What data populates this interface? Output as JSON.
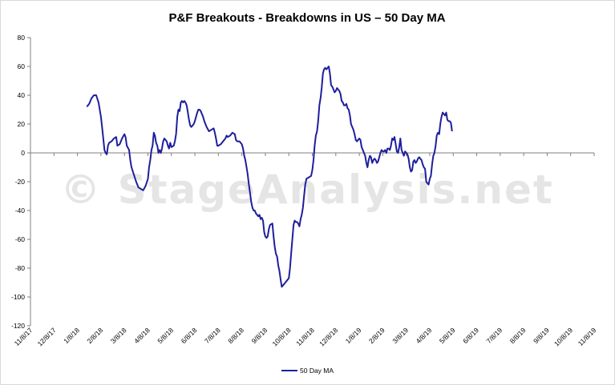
{
  "chart_data": {
    "type": "line",
    "title": "P&F Breakouts - Breakdowns in US – 50 Day MA",
    "xlabel": "",
    "ylabel": "",
    "ylim": [
      -120,
      80
    ],
    "yticks": [
      80,
      60,
      40,
      20,
      0,
      -20,
      -40,
      -60,
      -80,
      -100,
      -120
    ],
    "grid": false,
    "legend_position": "bottom",
    "watermark": "© StageAnalysis.net",
    "x_tick_labels": [
      "11/8/17",
      "12/8/17",
      "1/8/18",
      "2/8/18",
      "3/8/18",
      "4/8/18",
      "5/8/18",
      "6/8/18",
      "7/8/18",
      "8/8/18",
      "9/8/18",
      "10/8/18",
      "11/8/18",
      "12/8/18",
      "1/8/19",
      "2/8/19",
      "3/8/19",
      "4/8/19",
      "5/8/19",
      "6/8/19",
      "7/8/19",
      "8/8/19",
      "9/8/19",
      "10/8/19",
      "11/8/19"
    ],
    "series": [
      {
        "name": "50 Day MA",
        "color": "#1f1f9c",
        "points": [
          [
            2.4,
            32
          ],
          [
            2.5,
            34
          ],
          [
            2.6,
            38
          ],
          [
            2.7,
            40
          ],
          [
            2.8,
            40
          ],
          [
            2.9,
            35
          ],
          [
            3.0,
            25
          ],
          [
            3.05,
            18
          ],
          [
            3.1,
            10
          ],
          [
            3.15,
            2
          ],
          [
            3.2,
            0
          ],
          [
            3.25,
            -1
          ],
          [
            3.3,
            5
          ],
          [
            3.35,
            7
          ],
          [
            3.45,
            8
          ],
          [
            3.55,
            10
          ],
          [
            3.65,
            11
          ],
          [
            3.7,
            5
          ],
          [
            3.8,
            6
          ],
          [
            3.9,
            10
          ],
          [
            4.0,
            13
          ],
          [
            4.05,
            11
          ],
          [
            4.1,
            5
          ],
          [
            4.2,
            2
          ],
          [
            4.25,
            -5
          ],
          [
            4.3,
            -10
          ],
          [
            4.4,
            -15
          ],
          [
            4.5,
            -20
          ],
          [
            4.6,
            -24
          ],
          [
            4.7,
            -25
          ],
          [
            4.8,
            -26
          ],
          [
            4.9,
            -23
          ],
          [
            5.0,
            -18
          ],
          [
            5.05,
            -10
          ],
          [
            5.1,
            -5
          ],
          [
            5.15,
            2
          ],
          [
            5.2,
            5
          ],
          [
            5.25,
            14
          ],
          [
            5.3,
            12
          ],
          [
            5.35,
            7
          ],
          [
            5.4,
            5
          ],
          [
            5.45,
            0
          ],
          [
            5.5,
            2
          ],
          [
            5.55,
            0
          ],
          [
            5.6,
            3
          ],
          [
            5.65,
            8
          ],
          [
            5.7,
            10
          ],
          [
            5.8,
            8
          ],
          [
            5.85,
            5
          ],
          [
            5.9,
            3
          ],
          [
            5.95,
            7
          ],
          [
            6.0,
            4
          ],
          [
            6.1,
            5
          ],
          [
            6.15,
            8
          ],
          [
            6.2,
            13
          ],
          [
            6.25,
            25
          ],
          [
            6.3,
            30
          ],
          [
            6.35,
            29
          ],
          [
            6.4,
            35
          ],
          [
            6.45,
            36
          ],
          [
            6.5,
            35
          ],
          [
            6.55,
            36
          ],
          [
            6.6,
            35
          ],
          [
            6.65,
            33
          ],
          [
            6.7,
            28
          ],
          [
            6.75,
            23
          ],
          [
            6.8,
            19
          ],
          [
            6.85,
            18
          ],
          [
            6.9,
            19
          ],
          [
            6.95,
            20
          ],
          [
            7.0,
            22
          ],
          [
            7.05,
            25
          ],
          [
            7.1,
            28
          ],
          [
            7.15,
            30
          ],
          [
            7.2,
            30
          ],
          [
            7.25,
            29
          ],
          [
            7.3,
            27
          ],
          [
            7.35,
            25
          ],
          [
            7.4,
            22
          ],
          [
            7.5,
            18
          ],
          [
            7.6,
            15
          ],
          [
            7.7,
            16
          ],
          [
            7.8,
            17
          ],
          [
            7.85,
            14
          ],
          [
            7.9,
            10
          ],
          [
            7.95,
            5
          ],
          [
            8.0,
            5
          ],
          [
            8.1,
            6
          ],
          [
            8.2,
            8
          ],
          [
            8.3,
            10
          ],
          [
            8.35,
            12
          ],
          [
            8.4,
            11
          ],
          [
            8.5,
            12
          ],
          [
            8.6,
            14
          ],
          [
            8.7,
            13
          ],
          [
            8.75,
            9
          ],
          [
            8.8,
            8
          ],
          [
            8.9,
            8
          ],
          [
            9.0,
            6
          ],
          [
            9.05,
            3
          ],
          [
            9.1,
            -2
          ],
          [
            9.15,
            -5
          ],
          [
            9.2,
            -10
          ],
          [
            9.25,
            -15
          ],
          [
            9.3,
            -22
          ],
          [
            9.35,
            -28
          ],
          [
            9.4,
            -34
          ],
          [
            9.45,
            -38
          ],
          [
            9.5,
            -40
          ],
          [
            9.55,
            -40
          ],
          [
            9.6,
            -42
          ],
          [
            9.7,
            -44
          ],
          [
            9.75,
            -43
          ],
          [
            9.8,
            -46
          ],
          [
            9.85,
            -45
          ],
          [
            9.9,
            -47
          ],
          [
            9.95,
            -55
          ],
          [
            10.0,
            -58
          ],
          [
            10.05,
            -59
          ],
          [
            10.1,
            -58
          ],
          [
            10.15,
            -53
          ],
          [
            10.2,
            -50
          ],
          [
            10.3,
            -49
          ],
          [
            10.35,
            -58
          ],
          [
            10.4,
            -65
          ],
          [
            10.45,
            -70
          ],
          [
            10.5,
            -72
          ],
          [
            10.55,
            -78
          ],
          [
            10.6,
            -82
          ],
          [
            10.65,
            -88
          ],
          [
            10.7,
            -93
          ],
          [
            10.8,
            -91
          ],
          [
            10.85,
            -90
          ],
          [
            10.9,
            -89
          ],
          [
            11.0,
            -87
          ],
          [
            11.05,
            -80
          ],
          [
            11.1,
            -70
          ],
          [
            11.15,
            -60
          ],
          [
            11.2,
            -50
          ],
          [
            11.25,
            -47
          ],
          [
            11.3,
            -48
          ],
          [
            11.35,
            -48
          ],
          [
            11.4,
            -49
          ],
          [
            11.45,
            -51
          ],
          [
            11.5,
            -46
          ],
          [
            11.55,
            -43
          ],
          [
            11.6,
            -38
          ],
          [
            11.65,
            -30
          ],
          [
            11.7,
            -22
          ],
          [
            11.75,
            -18
          ],
          [
            11.85,
            -17
          ],
          [
            11.95,
            -16
          ],
          [
            12.0,
            -12
          ],
          [
            12.05,
            -5
          ],
          [
            12.1,
            5
          ],
          [
            12.15,
            12
          ],
          [
            12.2,
            15
          ],
          [
            12.25,
            22
          ],
          [
            12.3,
            33
          ],
          [
            12.35,
            38
          ],
          [
            12.4,
            45
          ],
          [
            12.45,
            55
          ],
          [
            12.5,
            58
          ],
          [
            12.55,
            59
          ],
          [
            12.6,
            58
          ],
          [
            12.7,
            60
          ],
          [
            12.75,
            55
          ],
          [
            12.8,
            47
          ],
          [
            12.85,
            46
          ],
          [
            12.9,
            44
          ],
          [
            12.95,
            42
          ],
          [
            13.0,
            43
          ],
          [
            13.05,
            45
          ],
          [
            13.1,
            44
          ],
          [
            13.15,
            43
          ],
          [
            13.2,
            41
          ],
          [
            13.25,
            36
          ],
          [
            13.3,
            35
          ],
          [
            13.35,
            33
          ],
          [
            13.4,
            33
          ],
          [
            13.45,
            34
          ],
          [
            13.5,
            31
          ],
          [
            13.55,
            30
          ],
          [
            13.6,
            26
          ],
          [
            13.65,
            20
          ],
          [
            13.7,
            18
          ],
          [
            13.75,
            16
          ],
          [
            13.8,
            13
          ],
          [
            13.85,
            9
          ],
          [
            13.9,
            8
          ],
          [
            13.95,
            9
          ],
          [
            14.0,
            10
          ],
          [
            14.05,
            9
          ],
          [
            14.1,
            4
          ],
          [
            14.15,
            2
          ],
          [
            14.2,
            0
          ],
          [
            14.25,
            -2
          ],
          [
            14.3,
            -7
          ],
          [
            14.35,
            -10
          ],
          [
            14.4,
            -5
          ],
          [
            14.45,
            -2
          ],
          [
            14.5,
            -3
          ],
          [
            14.55,
            -7
          ],
          [
            14.6,
            -5
          ],
          [
            14.65,
            -4
          ],
          [
            14.7,
            -5
          ],
          [
            14.75,
            -7
          ],
          [
            14.8,
            -6
          ],
          [
            14.85,
            -3
          ],
          [
            14.9,
            0
          ],
          [
            14.95,
            2
          ],
          [
            15.0,
            1
          ],
          [
            15.05,
            1
          ],
          [
            15.1,
            2
          ],
          [
            15.15,
            0
          ],
          [
            15.2,
            3
          ],
          [
            15.25,
            3
          ],
          [
            15.3,
            2
          ],
          [
            15.35,
            5
          ],
          [
            15.4,
            10
          ],
          [
            15.45,
            9
          ],
          [
            15.5,
            11
          ],
          [
            15.55,
            6
          ],
          [
            15.6,
            1
          ],
          [
            15.65,
            0
          ],
          [
            15.7,
            4
          ],
          [
            15.75,
            10
          ],
          [
            15.8,
            2
          ],
          [
            15.85,
            0
          ],
          [
            15.9,
            -2
          ],
          [
            15.95,
            1
          ],
          [
            16.0,
            0
          ],
          [
            16.05,
            -1
          ],
          [
            16.1,
            -4
          ],
          [
            16.15,
            -10
          ],
          [
            16.2,
            -13
          ],
          [
            16.25,
            -12
          ],
          [
            16.3,
            -6
          ],
          [
            16.35,
            -5
          ],
          [
            16.4,
            -7
          ],
          [
            16.45,
            -6
          ],
          [
            16.5,
            -4
          ],
          [
            16.55,
            -3
          ],
          [
            16.6,
            -4
          ],
          [
            16.65,
            -5
          ],
          [
            16.7,
            -8
          ],
          [
            16.75,
            -10
          ],
          [
            16.8,
            -11
          ],
          [
            16.85,
            -20
          ],
          [
            16.9,
            -21
          ],
          [
            16.95,
            -22
          ],
          [
            17.0,
            -18
          ],
          [
            17.05,
            -16
          ],
          [
            17.1,
            -8
          ],
          [
            17.15,
            -2
          ],
          [
            17.2,
            0
          ],
          [
            17.25,
            5
          ],
          [
            17.3,
            12
          ],
          [
            17.35,
            14
          ],
          [
            17.4,
            13
          ],
          [
            17.45,
            20
          ],
          [
            17.5,
            25
          ],
          [
            17.55,
            28
          ],
          [
            17.6,
            27
          ],
          [
            17.65,
            26
          ],
          [
            17.7,
            28
          ],
          [
            17.75,
            23
          ],
          [
            17.8,
            22
          ],
          [
            17.85,
            22
          ],
          [
            17.9,
            21
          ],
          [
            17.95,
            15
          ]
        ]
      }
    ]
  }
}
